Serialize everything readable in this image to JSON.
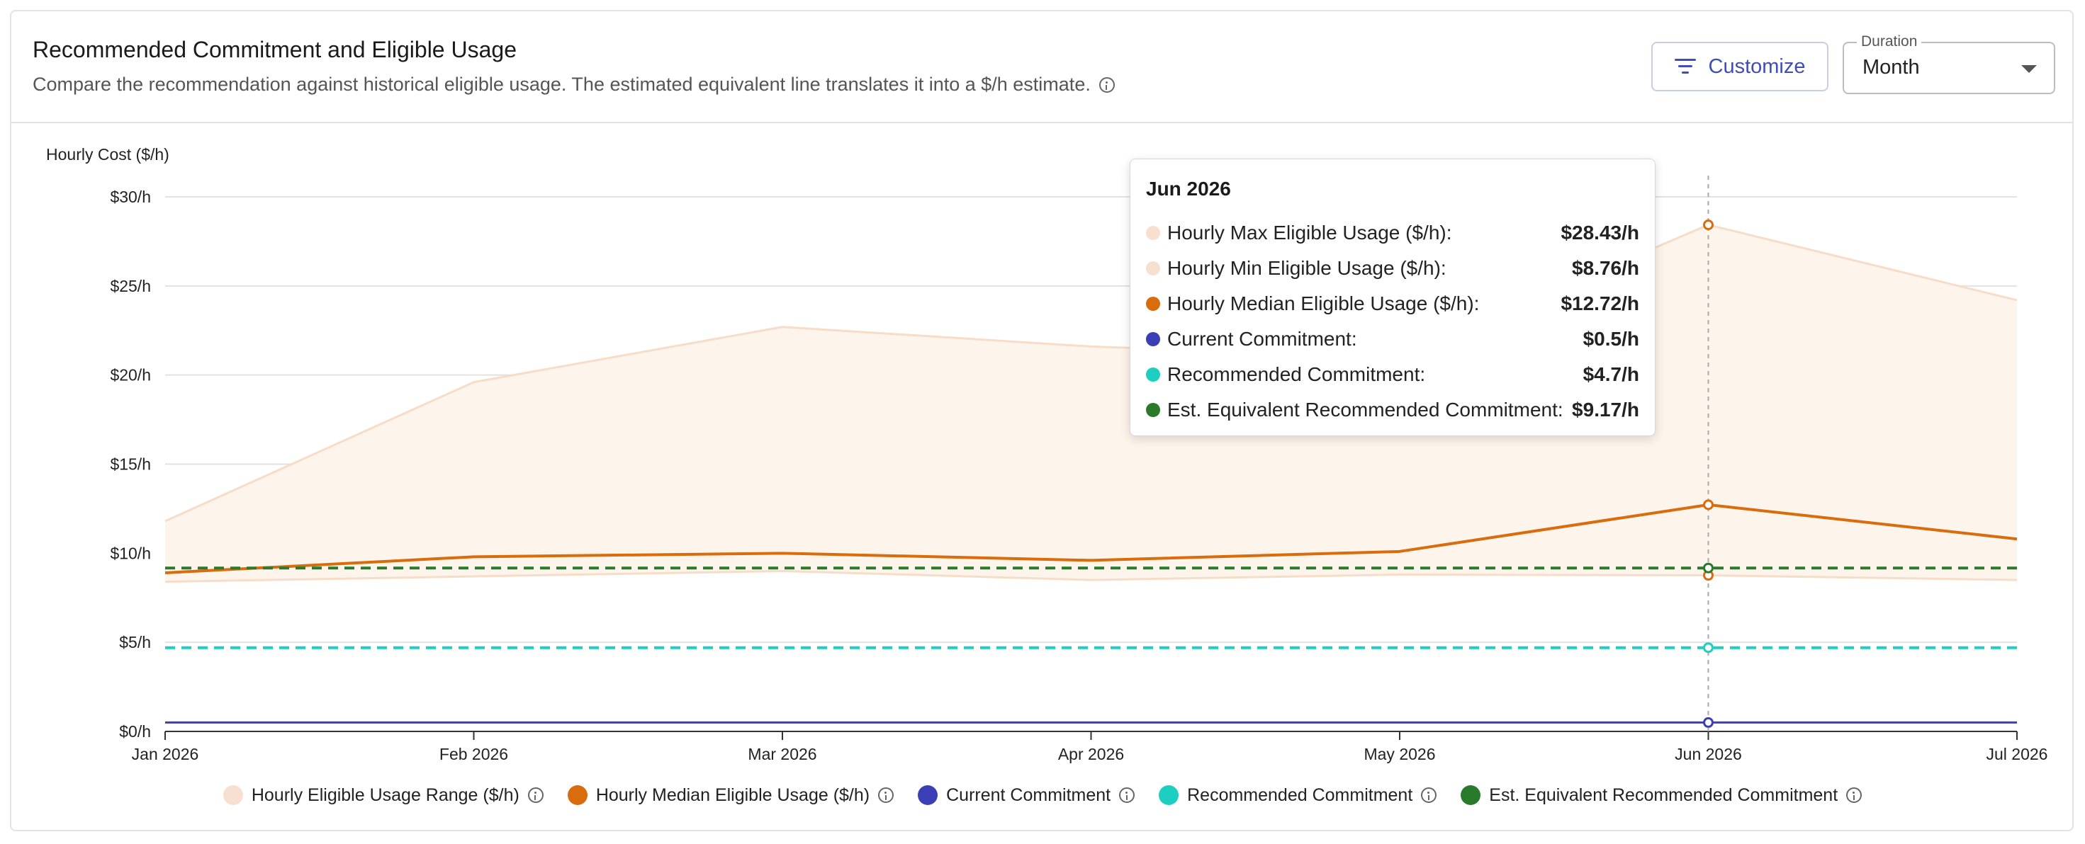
{
  "header": {
    "title": "Recommended Commitment and Eligible Usage",
    "subtitle": "Compare the recommendation against historical eligible usage. The estimated equivalent line translates it into a $/h estimate.",
    "customize_label": "Customize",
    "duration_label": "Duration",
    "duration_value": "Month"
  },
  "chart_data": {
    "type": "line",
    "ylabel": "Hourly Cost ($/h)",
    "ylim": [
      0,
      30
    ],
    "yticks": [
      0,
      5,
      10,
      15,
      20,
      25,
      30
    ],
    "ytick_labels": [
      "$0/h",
      "$5/h",
      "$10/h",
      "$15/h",
      "$20/h",
      "$25/h",
      "$30/h"
    ],
    "categories": [
      "Jan 2026",
      "Feb 2026",
      "Mar 2026",
      "Apr 2026",
      "May 2026",
      "Jun 2026",
      "Jul 2026"
    ],
    "grid": true,
    "legend_position": "bottom",
    "series": [
      {
        "name": "Hourly Max Eligible Usage ($/h)",
        "values": [
          11.8,
          19.6,
          22.7,
          21.6,
          21.0,
          28.43,
          24.2
        ]
      },
      {
        "name": "Hourly Min Eligible Usage ($/h)",
        "values": [
          8.4,
          8.7,
          9.0,
          8.5,
          8.8,
          8.76,
          8.5
        ]
      },
      {
        "name": "Hourly Median Eligible Usage ($/h)",
        "values": [
          8.9,
          9.8,
          10.0,
          9.6,
          10.1,
          12.72,
          10.8
        ]
      },
      {
        "name": "Current Commitment",
        "values": [
          0.5,
          0.5,
          0.5,
          0.5,
          0.5,
          0.5,
          0.5
        ]
      },
      {
        "name": "Recommended Commitment",
        "values": [
          4.7,
          4.7,
          4.7,
          4.7,
          4.7,
          4.7,
          4.7
        ]
      },
      {
        "name": "Est. Equivalent Recommended Commitment",
        "values": [
          9.17,
          9.17,
          9.17,
          9.17,
          9.17,
          9.17,
          9.17
        ]
      }
    ],
    "colors": {
      "range_fill": "#fdf4ec",
      "range_line": "#f7dcc8",
      "median": "#d96c0c",
      "current": "#3b3fb5",
      "recommended": "#1ccfc0",
      "equivalent": "#2a7a2c"
    },
    "highlight_category": "Jun 2026",
    "tooltip": {
      "title": "Jun 2026",
      "rows": [
        {
          "label": "Hourly Max Eligible Usage ($/h):",
          "value": "$28.43/h",
          "color": "#f8e0d0"
        },
        {
          "label": "Hourly Min Eligible Usage ($/h):",
          "value": "$8.76/h",
          "color": "#f8e0d0"
        },
        {
          "label": "Hourly Median Eligible Usage ($/h):",
          "value": "$12.72/h",
          "color": "#d96c0c"
        },
        {
          "label": "Current Commitment:",
          "value": "$0.5/h",
          "color": "#3b3fb5"
        },
        {
          "label": "Recommended Commitment:",
          "value": "$4.7/h",
          "color": "#1ccfc0"
        },
        {
          "label": "Est. Equivalent Recommended Commitment:",
          "value": "$9.17/h",
          "color": "#2a7a2c"
        }
      ]
    }
  },
  "legend": [
    {
      "label": "Hourly Eligible Usage Range ($/h)",
      "color": "#f8e0d0"
    },
    {
      "label": "Hourly Median Eligible Usage ($/h)",
      "color": "#d96c0c"
    },
    {
      "label": "Current Commitment",
      "color": "#3b3fb5"
    },
    {
      "label": "Recommended Commitment",
      "color": "#1ccfc0"
    },
    {
      "label": "Est. Equivalent Recommended Commitment",
      "color": "#2a7a2c"
    }
  ]
}
